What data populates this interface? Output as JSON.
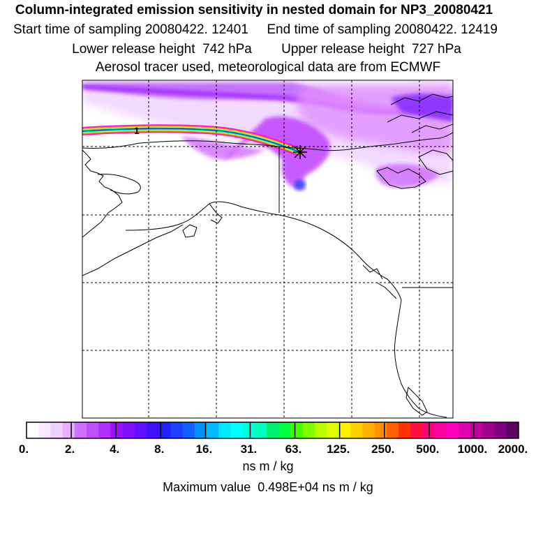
{
  "title": "Column-integrated emission sensitivity in nested domain for NP3_20080421",
  "sampling": {
    "start_label": "Start time of sampling 20080422. 12401",
    "end_label": "End time of sampling 20080422. 12419"
  },
  "release": {
    "lower_label": "Lower release height  742 hPa",
    "upper_label": "Upper release height  727 hPa"
  },
  "tracer_note": "Aerosol tracer used, meteorological data are from ECMWF",
  "map": {
    "contour_label": "1",
    "colors": {
      "coast": "#000000",
      "grid": "#000000",
      "plume_light": "#f0c8ff",
      "plume_mid": "#c040ff",
      "plume_dark": "#8000ff",
      "plume_core": "#3000ff"
    }
  },
  "legend": {
    "tick_labels": [
      "0.",
      "2.",
      "4.",
      "8.",
      "16.",
      "31.",
      "63.",
      "125.",
      "250.",
      "500.",
      "1000.",
      "2000."
    ],
    "colors": [
      "#ffffff",
      "#f8e8ff",
      "#f0d0ff",
      "#e8b0ff",
      "#d070ff",
      "#c050ff",
      "#b030ff",
      "#9a10ff",
      "#8010ff",
      "#6010ff",
      "#4010ff",
      "#2020ff",
      "#2040ff",
      "#1060ff",
      "#0090ff",
      "#00b8ff",
      "#00e8ff",
      "#00ffff",
      "#00ffe0",
      "#00ffc0",
      "#00f070",
      "#00ff40",
      "#40ff00",
      "#80ff00",
      "#b8ff00",
      "#e0ff00",
      "#fff000",
      "#ffd000",
      "#ffb000",
      "#ff9000",
      "#ff6000",
      "#ff3000",
      "#ff1040",
      "#ff0080",
      "#ff00a0",
      "#ff00c0",
      "#e000b0",
      "#c000a0",
      "#a00090",
      "#800080",
      "#600060"
    ],
    "units": "ns m / kg",
    "max_value_label": "Maximum value  0.498E+04 ns m / kg"
  }
}
